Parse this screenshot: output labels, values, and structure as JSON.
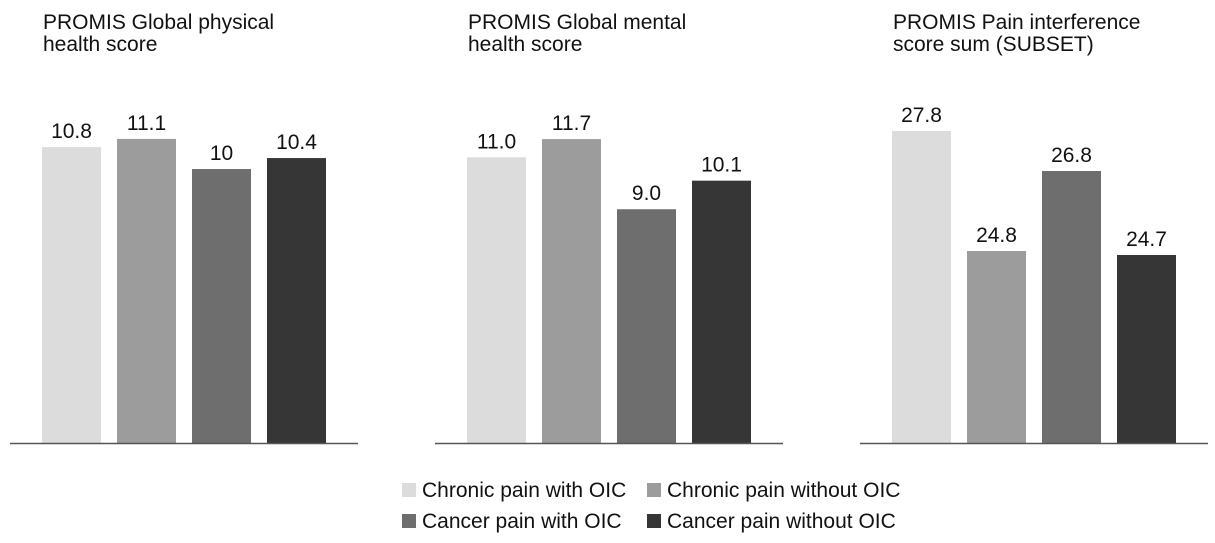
{
  "chart_data": [
    {
      "type": "bar",
      "title": "PROMIS Global physical health score",
      "categories": [
        "Chronic pain with OIC",
        "Chronic pain without OIC",
        "Cancer pain with OIC",
        "Cancer pain without OIC"
      ],
      "values": [
        10.8,
        11.1,
        10,
        10.4
      ],
      "value_labels": [
        "10.8",
        "11.1",
        "10",
        "10.4"
      ],
      "ylim": [
        0,
        14.6
      ]
    },
    {
      "type": "bar",
      "title": "PROMIS Global mental health score",
      "categories": [
        "Chronic pain with OIC",
        "Chronic pain without OIC",
        "Cancer pain with OIC",
        "Cancer pain without OIC"
      ],
      "values": [
        11.0,
        11.7,
        9.0,
        10.1
      ],
      "value_labels": [
        "11.0",
        "11.7",
        "9.0",
        "10.1"
      ],
      "ylim": [
        0,
        15.4
      ]
    },
    {
      "type": "bar",
      "title": "PROMIS Pain interference score sum (SUBSET)",
      "categories": [
        "Chronic pain with OIC",
        "Chronic pain without OIC",
        "Cancer pain with OIC",
        "Cancer pain without OIC"
      ],
      "values": [
        27.8,
        24.8,
        26.8,
        24.7
      ],
      "value_labels": [
        "27.8",
        "24.8",
        "26.8",
        "24.7"
      ],
      "ylim": [
        20.0,
        30.0
      ]
    }
  ],
  "panel_titles": [
    [
      "PROMIS Global physical",
      "health score"
    ],
    [
      "PROMIS Global mental",
      "health score"
    ],
    [
      "PROMIS Pain interference",
      "score sum (SUBSET)"
    ]
  ],
  "legend": [
    {
      "label": "Chronic pain with OIC",
      "color": "#dcdcdc"
    },
    {
      "label": "Chronic pain without OIC",
      "color": "#9c9c9c"
    },
    {
      "label": "Cancer pain with OIC",
      "color": "#6e6e6e"
    },
    {
      "label": "Cancer pain without OIC",
      "color": "#363636"
    }
  ],
  "legend_placement": "bottom-center",
  "grid": false
}
